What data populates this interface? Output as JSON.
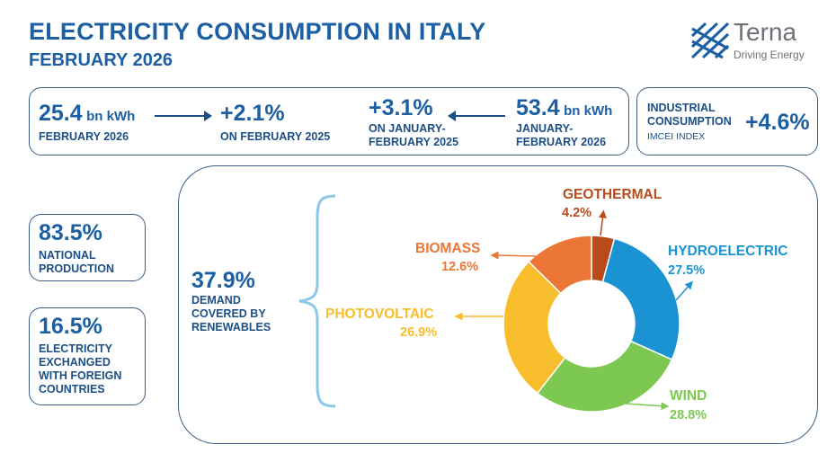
{
  "header": {
    "title": "ELECTRICITY CONSUMPTION IN ITALY",
    "subtitle": "FEBRUARY 2026"
  },
  "logo": {
    "name": "Terna",
    "tagline": "Driving Energy",
    "icon": "terna-logo-icon"
  },
  "summary": {
    "monthly_value": "25.4",
    "monthly_unit": "bn kWh",
    "monthly_label": "FEBRUARY 2026",
    "monthly_change": "+2.1%",
    "monthly_change_label": "ON FEBRUARY 2025",
    "ytd_change": "+3.1%",
    "ytd_change_label": "ON JANUARY-FEBRUARY 2025",
    "ytd_value": "53.4",
    "ytd_unit": "bn kWh",
    "ytd_label": "JANUARY-FEBRUARY 2026"
  },
  "industrial": {
    "label": "INDUSTRIAL CONSUMPTION",
    "index": "IMCEI INDEX",
    "value": "+4.6%"
  },
  "national": {
    "value": "83.5%",
    "label": "NATIONAL PRODUCTION"
  },
  "exchanged": {
    "value": "16.5%",
    "label": "ELECTRICITY EXCHANGED WITH FOREIGN COUNTRIES"
  },
  "renewables": {
    "value": "37.9%",
    "label": "DEMAND COVERED BY RENEWABLES"
  },
  "chart_data": {
    "type": "pie",
    "title": "",
    "categories": [
      "GEOTHERMAL",
      "HYDROELECTRIC",
      "WIND",
      "PHOTOVOLTAIC",
      "BIOMASS"
    ],
    "values": [
      4.2,
      27.5,
      28.8,
      26.9,
      12.6
    ],
    "labels": [
      "4.2%",
      "27.5%",
      "28.8%",
      "26.9%",
      "12.6%"
    ],
    "colors": [
      "#b94a1c",
      "#1b93d2",
      "#7dc851",
      "#f7bd2c",
      "#ec7636"
    ],
    "donut": true
  }
}
